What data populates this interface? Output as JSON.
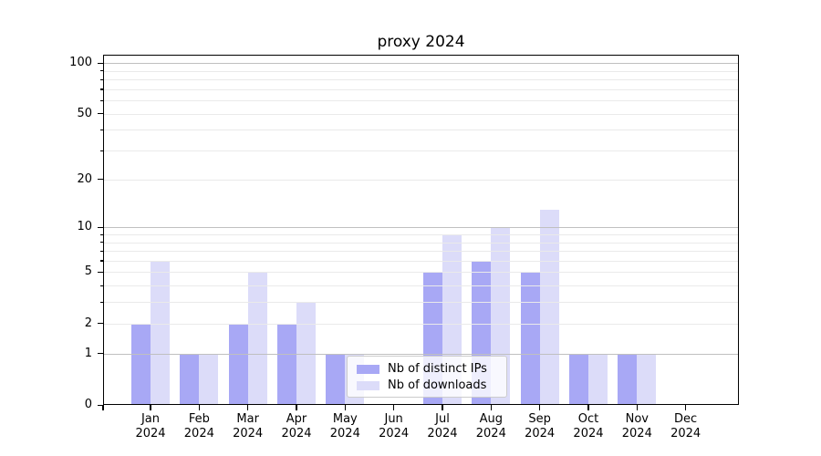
{
  "title": "proxy 2024",
  "chart_data": {
    "type": "bar",
    "title": "proxy 2024",
    "categories": [
      "Jan 2024",
      "Feb 2024",
      "Mar 2024",
      "Apr 2024",
      "May 2024",
      "Jun 2024",
      "Jul 2024",
      "Aug 2024",
      "Sep 2024",
      "Oct 2024",
      "Nov 2024",
      "Dec 2024"
    ],
    "series": [
      {
        "name": "Nb of distinct IPs",
        "color": "#a8a8f5",
        "values": [
          2,
          1,
          2,
          2,
          1,
          0,
          5,
          6,
          5,
          1,
          1,
          0
        ]
      },
      {
        "name": "Nb of downloads",
        "color": "#dcdcf9",
        "values": [
          6,
          1,
          5,
          3,
          1,
          0,
          9,
          10,
          13,
          1,
          1,
          0
        ]
      }
    ],
    "xlabel": "",
    "ylabel": "",
    "yscale": "log1p",
    "ylim": [
      0,
      113
    ],
    "y_ticks": [
      0,
      1,
      2,
      5,
      10,
      20,
      50,
      100
    ],
    "y_major_gridlines": [
      1,
      10,
      100
    ],
    "y_minor_gridlines": [
      2,
      3,
      4,
      5,
      6,
      7,
      8,
      9,
      20,
      30,
      40,
      50,
      60,
      70,
      80,
      90
    ],
    "grid": true,
    "legend_position": "lower center"
  },
  "colors": {
    "series_ips": "#a8a8f5",
    "series_downloads": "#dcdcf9",
    "grid_major": "#c0c0c0",
    "grid_minor": "#eaeaea",
    "spine": "#000000",
    "legend_border": "#cccccc"
  }
}
